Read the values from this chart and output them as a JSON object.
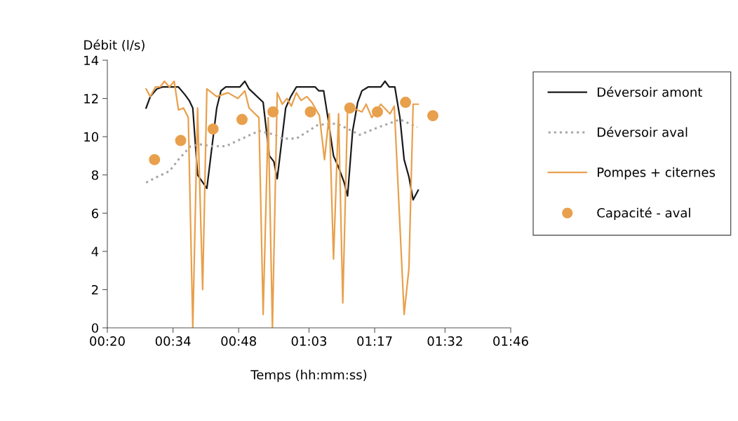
{
  "chart_data": {
    "type": "line",
    "xlabel": "Temps (hh:mm:ss)",
    "ylabel": "Débit (l/s)",
    "xlim": [
      0.3333,
      1.7667
    ],
    "xticks": [
      {
        "value": 0.3333,
        "label": "00:20"
      },
      {
        "value": 0.5667,
        "label": "00:34"
      },
      {
        "value": 0.8,
        "label": "00:48"
      },
      {
        "value": 1.05,
        "label": "01:03"
      },
      {
        "value": 1.2833,
        "label": "01:17"
      },
      {
        "value": 1.5333,
        "label": "01:32"
      },
      {
        "value": 1.7667,
        "label": "01:46"
      }
    ],
    "ylim": [
      0,
      14
    ],
    "yticks": [
      0,
      2,
      4,
      6,
      8,
      10,
      12,
      14
    ],
    "grid": false,
    "legend": "right",
    "series": [
      {
        "name": "Déversoir amont",
        "color": "#1a1a1a",
        "line_style": "solid",
        "x": [
          0.471,
          0.486,
          0.509,
          0.529,
          0.586,
          0.609,
          0.624,
          0.637,
          0.654,
          0.687,
          0.722,
          0.737,
          0.754,
          0.804,
          0.822,
          0.837,
          0.887,
          0.909,
          0.925,
          0.937,
          0.967,
          0.985,
          1.005,
          1.072,
          1.085,
          1.102,
          1.117,
          1.137,
          1.155,
          1.175,
          1.187,
          1.205,
          1.223,
          1.238,
          1.26,
          1.305,
          1.32,
          1.335,
          1.355,
          1.373,
          1.388,
          1.405,
          1.42,
          1.438
        ],
        "values": [
          11.5,
          12.1,
          12.5,
          12.6,
          12.6,
          12.2,
          11.9,
          11.5,
          8.0,
          7.3,
          11.5,
          12.4,
          12.6,
          12.6,
          12.9,
          12.5,
          11.8,
          9.0,
          8.7,
          7.8,
          11.5,
          12.1,
          12.6,
          12.6,
          12.4,
          12.4,
          11.0,
          9.0,
          8.4,
          7.6,
          6.9,
          10.3,
          11.8,
          12.4,
          12.6,
          12.6,
          12.9,
          12.6,
          12.6,
          11.0,
          8.8,
          7.9,
          6.7,
          7.2
        ]
      },
      {
        "name": "Déversoir aval",
        "color": "#a6a6a6",
        "line_style": "dotted",
        "x": [
          0.471,
          0.511,
          0.554,
          0.586,
          0.629,
          0.662,
          0.704,
          0.754,
          0.797,
          0.872,
          0.93,
          0.955,
          1.005,
          1.08,
          1.13,
          1.162,
          1.23,
          1.298,
          1.373,
          1.435
        ],
        "values": [
          7.6,
          7.9,
          8.2,
          8.8,
          9.5,
          9.6,
          9.5,
          9.5,
          9.8,
          10.3,
          10.1,
          9.9,
          9.9,
          10.6,
          10.7,
          10.6,
          10.1,
          10.5,
          10.9,
          10.5
        ]
      },
      {
        "name": "Pompes + citernes",
        "color": "#e8a04c",
        "line_style": "solid",
        "x": [
          0.471,
          0.486,
          0.504,
          0.521,
          0.536,
          0.554,
          0.571,
          0.586,
          0.604,
          0.621,
          0.637,
          0.654,
          0.672,
          0.687,
          0.722,
          0.762,
          0.797,
          0.822,
          0.837,
          0.872,
          0.887,
          0.905,
          0.92,
          0.937,
          0.955,
          0.972,
          0.987,
          1.005,
          1.022,
          1.042,
          1.06,
          1.087,
          1.105,
          1.122,
          1.137,
          1.155,
          1.17,
          1.187,
          1.205,
          1.238,
          1.253,
          1.273,
          1.305,
          1.338,
          1.353,
          1.388,
          1.405,
          1.42,
          1.438
        ],
        "values": [
          12.5,
          12.1,
          12.6,
          12.6,
          12.9,
          12.6,
          12.9,
          11.4,
          11.5,
          11.0,
          0,
          11.5,
          2.0,
          12.5,
          12.1,
          12.3,
          12.0,
          12.4,
          11.5,
          11.0,
          0.7,
          11.0,
          0,
          12.3,
          11.7,
          12.0,
          11.6,
          12.3,
          11.9,
          12.1,
          11.8,
          11.1,
          8.8,
          11.2,
          3.6,
          11.2,
          1.3,
          11.5,
          11.5,
          11.3,
          11.7,
          11.0,
          11.7,
          11.2,
          11.6,
          0.7,
          3.1,
          11.7,
          11.7
        ]
      },
      {
        "name": "Capacité - aval",
        "type": "scatter",
        "color": "#e8a04c",
        "marker": "circle",
        "x": [
          0.501,
          0.594,
          0.709,
          0.812,
          0.922,
          1.055,
          1.195,
          1.293,
          1.393,
          1.49
        ],
        "values": [
          8.8,
          9.8,
          10.4,
          10.9,
          11.3,
          11.3,
          11.5,
          11.3,
          11.8,
          11.1
        ]
      }
    ]
  }
}
